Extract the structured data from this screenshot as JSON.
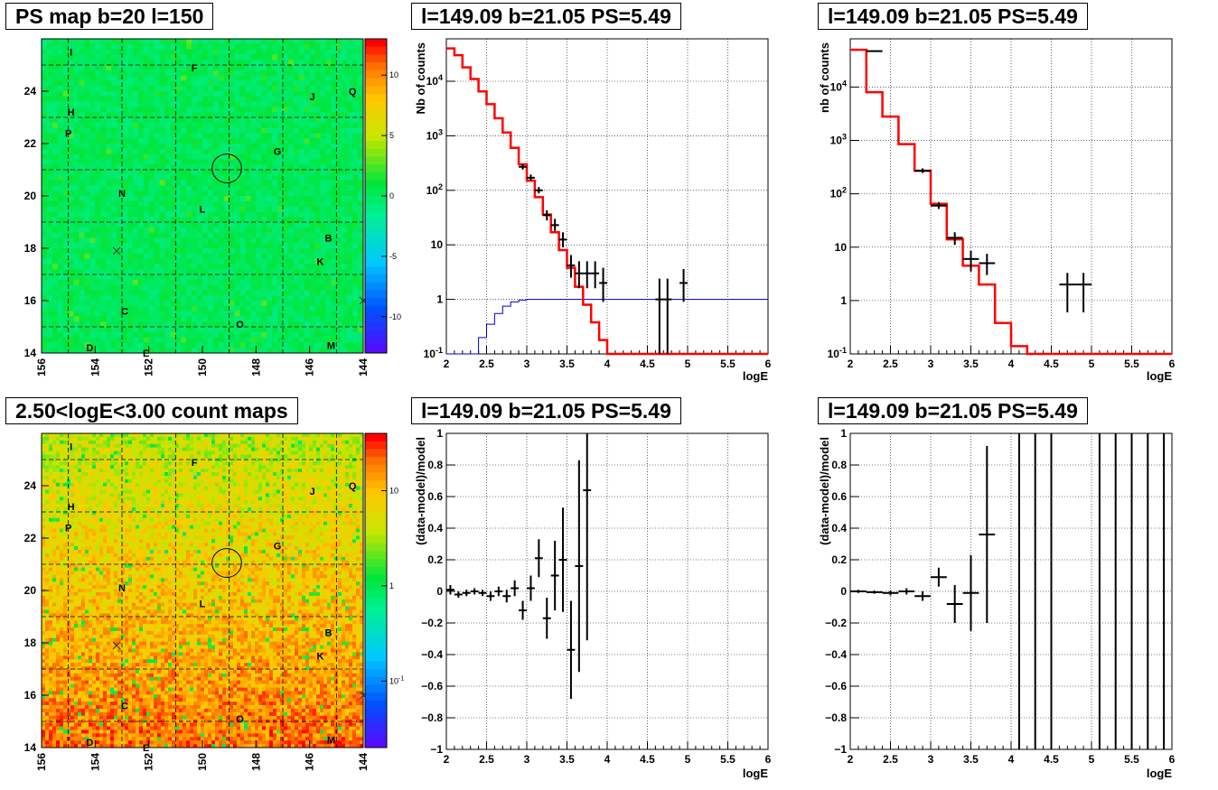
{
  "panel_titles": {
    "map_top": "PS map b=20 l=150",
    "spec_mid": "l=149.09 b=21.05 PS=5.49",
    "spec_right": "l=149.09 b=21.05 PS=5.49",
    "map_bottom": "2.50<logE<3.00 count maps",
    "res_mid": "l=149.09 b=21.05 PS=5.49",
    "res_right": "l=149.09 b=21.05 PS=5.49"
  },
  "chart_data": [
    {
      "panel": "map_top",
      "type": "heatmap",
      "x_ticks": [
        "156",
        "154",
        "152",
        "150",
        "148",
        "146",
        "144"
      ],
      "y_ticks": [
        "14",
        "16",
        "18",
        "20",
        "22",
        "24"
      ],
      "xlim": [
        156,
        144
      ],
      "ylim": [
        14,
        26
      ],
      "colorbar_ticks": [
        "10",
        "5",
        "0",
        "-5",
        "-10"
      ],
      "colorbar_range": [
        -13,
        13
      ],
      "source_labels": [
        {
          "t": "I",
          "l": 154.9,
          "b": 25.5
        },
        {
          "t": "F",
          "l": 150.3,
          "b": 24.9
        },
        {
          "t": "J",
          "l": 145.9,
          "b": 23.8
        },
        {
          "t": "Q",
          "l": 144.4,
          "b": 24.0
        },
        {
          "t": "H",
          "l": 154.9,
          "b": 23.2
        },
        {
          "t": "P",
          "l": 155.0,
          "b": 22.4
        },
        {
          "t": "G",
          "l": 147.2,
          "b": 21.7
        },
        {
          "t": "N",
          "l": 153.0,
          "b": 20.1
        },
        {
          "t": "L",
          "l": 150.0,
          "b": 19.5
        },
        {
          "t": "B",
          "l": 145.3,
          "b": 18.4
        },
        {
          "t": "K",
          "l": 145.6,
          "b": 17.5
        },
        {
          "t": "C",
          "l": 152.9,
          "b": 15.6
        },
        {
          "t": "O",
          "l": 148.6,
          "b": 15.1
        },
        {
          "t": "D",
          "l": 154.2,
          "b": 14.2
        },
        {
          "t": "E",
          "l": 152.1,
          "b": 14.0
        },
        {
          "t": "M",
          "l": 145.2,
          "b": 14.3
        }
      ],
      "circle": {
        "l": 149.09,
        "b": 21.05,
        "r": 0.55
      },
      "crosses": [
        {
          "l": 153.2,
          "b": 17.9
        },
        {
          "l": 144.0,
          "b": 16.0
        }
      ]
    },
    {
      "panel": "spec_mid",
      "type": "line",
      "scale": "log",
      "xlabel": "logE",
      "ylabel": "Nb of counts",
      "xlim": [
        2,
        6
      ],
      "ylim": [
        0.1,
        60000
      ],
      "x_ticks": [
        "2",
        "2.5",
        "3",
        "3.5",
        "4",
        "4.5",
        "5",
        "5.5",
        "6"
      ],
      "y_ticks": [
        "10^-1",
        "1",
        "10",
        "10^2",
        "10^3",
        "10^4"
      ],
      "bin_width": 0.1,
      "model": [
        40000,
        30000,
        18000,
        11000,
        6500,
        3800,
        2100,
        1150,
        600,
        300,
        150,
        75,
        36,
        17,
        8,
        3.8,
        1.7,
        0.8,
        0.38,
        0.18,
        0.09,
        0.05,
        0.02,
        0.01,
        0.01,
        0.01,
        0.01,
        0.01,
        0.01,
        0.01,
        0.01,
        0.01,
        0.01,
        0.01,
        0.01,
        0.01,
        0.01,
        0.01,
        0.01,
        0.01
      ],
      "background": [
        0.01,
        0.01,
        0.01,
        0.1,
        0.2,
        0.35,
        0.55,
        0.75,
        0.9,
        0.97,
        1,
        1,
        1,
        1,
        1,
        1,
        1,
        1,
        1,
        1,
        1,
        1,
        1,
        1,
        1,
        1,
        1,
        1,
        1,
        1,
        1,
        1,
        1,
        1,
        1,
        1,
        1,
        1,
        1,
        1
      ],
      "data_points": [
        {
          "x": 2.95,
          "y": 270,
          "lo": 240,
          "hi": 300
        },
        {
          "x": 3.05,
          "y": 170,
          "lo": 150,
          "hi": 195
        },
        {
          "x": 3.15,
          "y": 100,
          "lo": 88,
          "hi": 115
        },
        {
          "x": 3.25,
          "y": 35,
          "lo": 28,
          "hi": 43
        },
        {
          "x": 3.35,
          "y": 23,
          "lo": 18,
          "hi": 30
        },
        {
          "x": 3.45,
          "y": 12.5,
          "lo": 9,
          "hi": 17
        },
        {
          "x": 3.55,
          "y": 4.2,
          "lo": 2.5,
          "hi": 6.5
        },
        {
          "x": 3.65,
          "y": 3,
          "lo": 1.6,
          "hi": 5
        },
        {
          "x": 3.75,
          "y": 3,
          "lo": 1.6,
          "hi": 5
        },
        {
          "x": 3.85,
          "y": 3,
          "lo": 1.6,
          "hi": 5
        },
        {
          "x": 3.95,
          "y": 2,
          "lo": 0.9,
          "hi": 3.8
        },
        {
          "x": 4.65,
          "y": 1,
          "lo": 0.1,
          "hi": 2.4
        },
        {
          "x": 4.75,
          "y": 1,
          "lo": 0.1,
          "hi": 2.4
        },
        {
          "x": 4.95,
          "y": 2,
          "lo": 0.9,
          "hi": 3.6
        }
      ]
    },
    {
      "panel": "spec_right",
      "type": "line",
      "scale": "log",
      "xlabel": "logE",
      "ylabel": "nb of counts",
      "xlim": [
        2,
        6
      ],
      "ylim": [
        0.1,
        80000
      ],
      "x_ticks": [
        "2",
        "2.5",
        "3",
        "3.5",
        "4",
        "4.5",
        "5",
        "5.5",
        "6"
      ],
      "y_ticks": [
        "10^-1",
        "1",
        "10",
        "10^2",
        "10^3",
        "10^4"
      ],
      "bin_width": 0.2,
      "model": [
        50000,
        8000,
        2800,
        850,
        270,
        65,
        14,
        4.5,
        2,
        0.38,
        0.14,
        0.05,
        0.05,
        0.05,
        0.05,
        0.05,
        0.05,
        0.05,
        0.05,
        0.05
      ],
      "data_points": [
        {
          "x": 2.3,
          "y": 47000,
          "lo": 46000,
          "hi": 48000
        },
        {
          "x": 2.9,
          "y": 270,
          "lo": 245,
          "hi": 300
        },
        {
          "x": 3.1,
          "y": 60,
          "lo": 52,
          "hi": 70
        },
        {
          "x": 3.3,
          "y": 15,
          "lo": 11,
          "hi": 19
        },
        {
          "x": 3.5,
          "y": 6,
          "lo": 3.5,
          "hi": 8.5
        },
        {
          "x": 3.7,
          "y": 5,
          "lo": 3,
          "hi": 7.5
        },
        {
          "x": 4.7,
          "y": 2,
          "lo": 0.6,
          "hi": 3.3
        },
        {
          "x": 4.9,
          "y": 2,
          "lo": 0.6,
          "hi": 3.3
        }
      ]
    },
    {
      "panel": "map_bottom",
      "type": "heatmap",
      "x_ticks": [
        "156",
        "154",
        "152",
        "150",
        "148",
        "146",
        "144"
      ],
      "y_ticks": [
        "14",
        "16",
        "18",
        "20",
        "22",
        "24"
      ],
      "xlim": [
        156,
        144
      ],
      "ylim": [
        14,
        26
      ],
      "colorbar_ticks": [
        "10",
        "1",
        "10^-1"
      ],
      "colorbar_range": [
        0.02,
        40
      ],
      "source_labels": [
        {
          "t": "I",
          "l": 154.9,
          "b": 25.5
        },
        {
          "t": "F",
          "l": 150.3,
          "b": 24.9
        },
        {
          "t": "J",
          "l": 145.9,
          "b": 23.8
        },
        {
          "t": "Q",
          "l": 144.4,
          "b": 24.0
        },
        {
          "t": "H",
          "l": 154.9,
          "b": 23.2
        },
        {
          "t": "P",
          "l": 155.0,
          "b": 22.4
        },
        {
          "t": "G",
          "l": 147.2,
          "b": 21.7
        },
        {
          "t": "N",
          "l": 153.0,
          "b": 20.1
        },
        {
          "t": "L",
          "l": 150.0,
          "b": 19.5
        },
        {
          "t": "B",
          "l": 145.3,
          "b": 18.4
        },
        {
          "t": "K",
          "l": 145.6,
          "b": 17.5
        },
        {
          "t": "C",
          "l": 152.9,
          "b": 15.6
        },
        {
          "t": "O",
          "l": 148.6,
          "b": 15.1
        },
        {
          "t": "D",
          "l": 154.2,
          "b": 14.2
        },
        {
          "t": "E",
          "l": 152.1,
          "b": 14.0
        },
        {
          "t": "M",
          "l": 145.2,
          "b": 14.3
        }
      ],
      "circle": {
        "l": 149.09,
        "b": 21.05,
        "r": 0.55
      },
      "crosses": [
        {
          "l": 153.2,
          "b": 17.9
        },
        {
          "l": 144.0,
          "b": 16.0
        }
      ]
    },
    {
      "panel": "res_mid",
      "type": "scatter",
      "xlabel": "logE",
      "ylabel": "(data-model)/model",
      "xlim": [
        2,
        6
      ],
      "ylim": [
        -1,
        1
      ],
      "x_ticks": [
        "2",
        "2.5",
        "3",
        "3.5",
        "4",
        "4.5",
        "5",
        "5.5",
        "6"
      ],
      "y_ticks": [
        "-1",
        "-0.8",
        "-0.6",
        "-0.4",
        "-0.2",
        "0",
        "0.2",
        "0.4",
        "0.6",
        "0.8",
        "1"
      ],
      "xerr": 0.05,
      "points": [
        {
          "x": 2.05,
          "y": 0.01,
          "e": 0.03
        },
        {
          "x": 2.15,
          "y": -0.02,
          "e": 0.02
        },
        {
          "x": 2.25,
          "y": -0.01,
          "e": 0.02
        },
        {
          "x": 2.35,
          "y": 0.0,
          "e": 0.02
        },
        {
          "x": 2.45,
          "y": -0.01,
          "e": 0.02
        },
        {
          "x": 2.55,
          "y": -0.03,
          "e": 0.03
        },
        {
          "x": 2.65,
          "y": 0.0,
          "e": 0.03
        },
        {
          "x": 2.75,
          "y": -0.03,
          "e": 0.04
        },
        {
          "x": 2.85,
          "y": 0.02,
          "e": 0.05
        },
        {
          "x": 2.95,
          "y": -0.12,
          "e": 0.06
        },
        {
          "x": 3.05,
          "y": 0.02,
          "e": 0.08
        },
        {
          "x": 3.15,
          "y": 0.21,
          "e": 0.12
        },
        {
          "x": 3.25,
          "y": -0.17,
          "e": 0.13
        },
        {
          "x": 3.35,
          "y": 0.1,
          "e": 0.22
        },
        {
          "x": 3.45,
          "y": 0.2,
          "e": 0.33
        },
        {
          "x": 3.55,
          "y": -0.37,
          "e": 0.31
        },
        {
          "x": 3.65,
          "y": 0.16,
          "e": 0.67
        },
        {
          "x": 3.75,
          "y": 0.64,
          "e": 0.95
        }
      ]
    },
    {
      "panel": "res_right",
      "type": "scatter",
      "xlabel": "logE",
      "ylabel": "(data-model)/model",
      "xlim": [
        2,
        6
      ],
      "ylim": [
        -1,
        1
      ],
      "x_ticks": [
        "2",
        "2.5",
        "3",
        "3.5",
        "4",
        "4.5",
        "5",
        "5.5",
        "6"
      ],
      "y_ticks": [
        "-1",
        "-0.8",
        "-0.6",
        "-0.4",
        "-0.2",
        "0",
        "0.2",
        "0.4",
        "0.6",
        "0.8",
        "1"
      ],
      "xerr": 0.1,
      "points": [
        {
          "x": 2.1,
          "y": 0.0,
          "e": 0.01
        },
        {
          "x": 2.3,
          "y": -0.005,
          "e": 0.01
        },
        {
          "x": 2.5,
          "y": -0.01,
          "e": 0.015
        },
        {
          "x": 2.7,
          "y": 0.0,
          "e": 0.02
        },
        {
          "x": 2.9,
          "y": -0.03,
          "e": 0.03
        },
        {
          "x": 3.1,
          "y": 0.09,
          "e": 0.06
        },
        {
          "x": 3.3,
          "y": -0.08,
          "e": 0.12
        },
        {
          "x": 3.5,
          "y": -0.01,
          "e": 0.24
        },
        {
          "x": 3.7,
          "y": 0.36,
          "e": 0.56
        }
      ],
      "full_bars_x": [
        4.1,
        4.3,
        4.5,
        5.1,
        5.3,
        5.5,
        5.7,
        5.9
      ]
    }
  ]
}
